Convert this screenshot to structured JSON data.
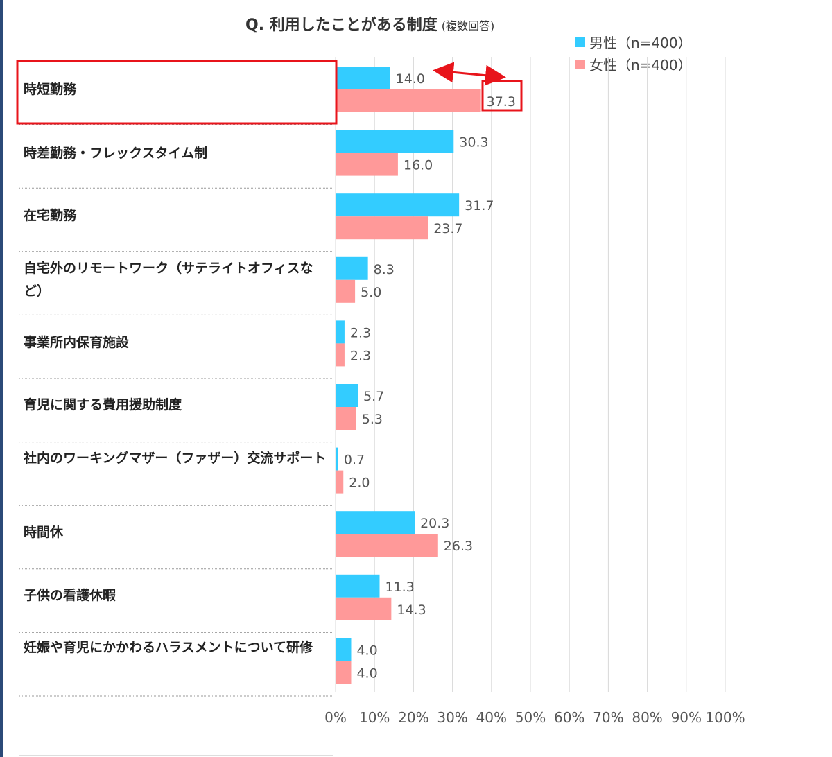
{
  "title": "Q. 利用したことがある制度",
  "subtitle": "(複数回答)",
  "colors": {
    "male": "#33ccff",
    "female": "#ff9999",
    "highlight": "#e8141b",
    "grid": "#d9d9d9"
  },
  "chart_data": {
    "type": "bar",
    "orientation": "horizontal",
    "title": "Q. 利用したことがある制度",
    "subtitle": "(複数回答)",
    "categories": [
      "時短勤務",
      "時差勤務・フレックスタイム制",
      "在宅勤務",
      "自宅外のリモートワーク（サテライトオフィスなど）",
      "事業所内保育施設",
      "育児に関する費用援助制度",
      "社内のワーキングマザー（ファザー）交流サポート",
      "時間休",
      "子供の看護休暇",
      "妊娠や育児にかかわるハラスメントについて研修"
    ],
    "series": [
      {
        "name": "男性（n=400）",
        "color": "#33ccff",
        "values": [
          14.0,
          30.3,
          31.7,
          8.3,
          2.3,
          5.7,
          0.7,
          20.3,
          11.3,
          4.0
        ]
      },
      {
        "name": "女性（n=400）",
        "color": "#ff9999",
        "values": [
          37.3,
          16.0,
          23.7,
          5.0,
          2.3,
          5.3,
          2.0,
          26.3,
          14.3,
          4.0
        ]
      }
    ],
    "value_labels_male": [
      "14.0",
      "30.3",
      "31.7",
      "8.3",
      "2.3",
      "5.7",
      "0.7",
      "20.3",
      "11.3",
      "4.0"
    ],
    "value_labels_female": [
      "37.3",
      "16.0",
      "23.7",
      "5.0",
      "2.3",
      "5.3",
      "2.0",
      "26.3",
      "14.3",
      "4.0"
    ],
    "xlim": [
      0,
      100
    ],
    "x_ticks": [
      "0%",
      "10%",
      "20%",
      "30%",
      "40%",
      "50%",
      "60%",
      "70%",
      "80%",
      "90%",
      "100%"
    ],
    "grid": true,
    "legend_position": "top-right",
    "annotations": "first category label and the 37.3 value label are boxed in red, with a red double-headed arrow linking 14.0 and 37.3"
  }
}
